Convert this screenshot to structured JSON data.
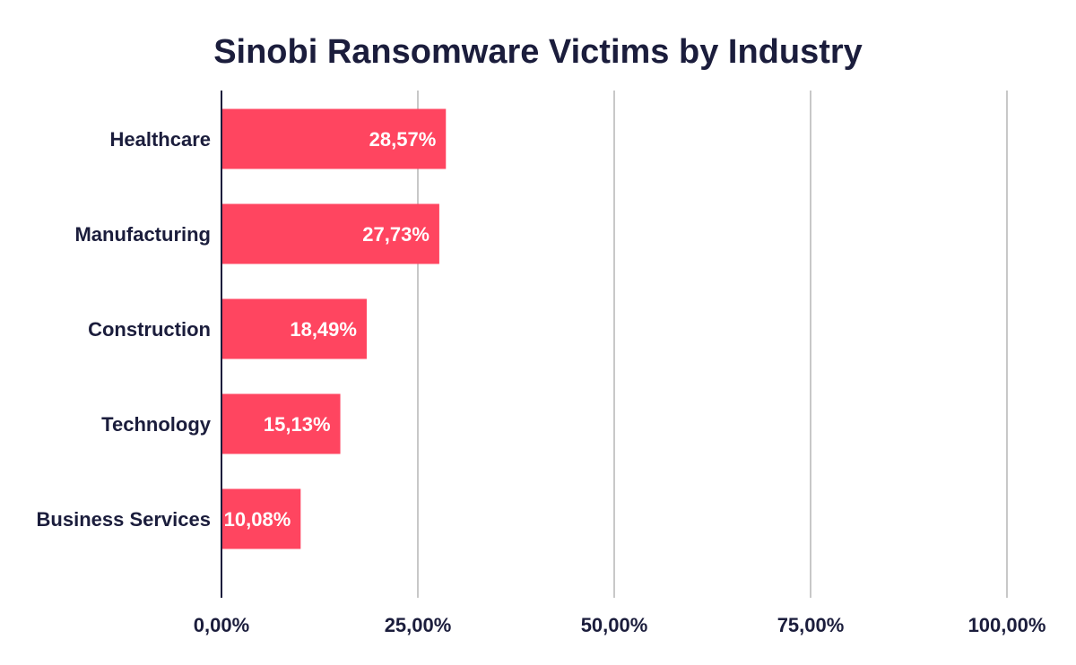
{
  "chart_data": {
    "type": "bar",
    "orientation": "horizontal",
    "title": "Sinobi Ransomware Victims by Industry",
    "xlabel": "",
    "ylabel": "",
    "categories": [
      "Healthcare",
      "Manufacturing",
      "Construction",
      "Technology",
      "Business Services"
    ],
    "values": [
      28.57,
      27.73,
      18.49,
      15.13,
      10.08
    ],
    "value_labels": [
      "28,57%",
      "27,73%",
      "18,49%",
      "15,13%",
      "10,08%"
    ],
    "xlim": [
      0,
      100
    ],
    "x_ticks": [
      0,
      25,
      50,
      75,
      100
    ],
    "x_tick_labels": [
      "0,00%",
      "25,00%",
      "50,00%",
      "75,00%",
      "100,00%"
    ],
    "grid": true,
    "legend": "none",
    "colors": {
      "bar": "#ff4560",
      "gridline": "#c8c8c8",
      "axis": "#1b1d3c",
      "text": "#1b1d3c",
      "value_text": "#ffffff"
    }
  }
}
